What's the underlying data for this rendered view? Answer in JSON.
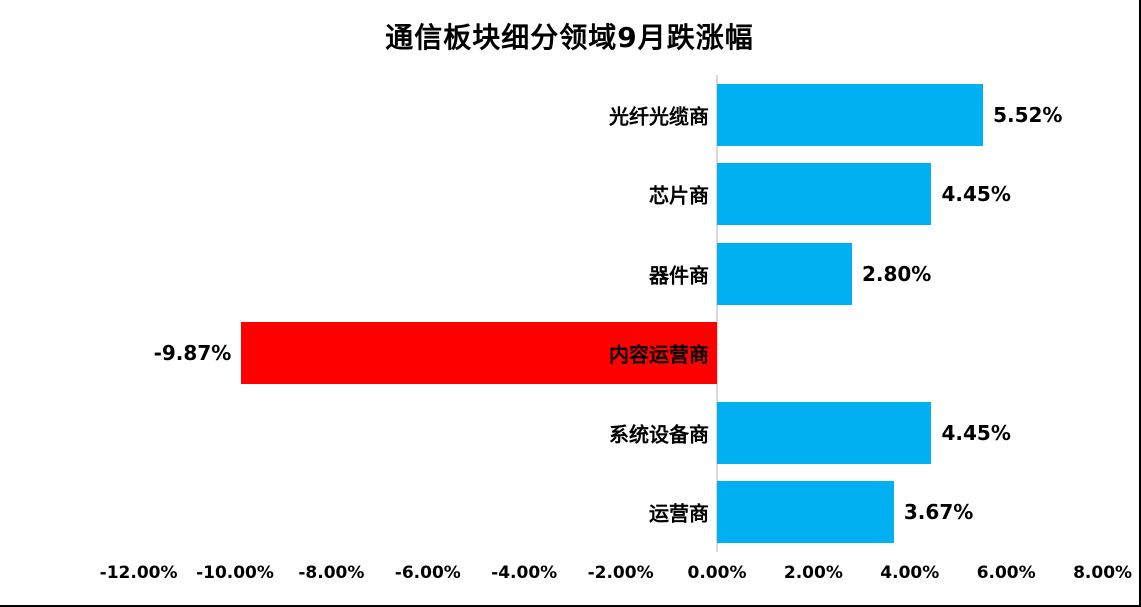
{
  "title": "通信板块细分领域9月跌涨幅",
  "colors": {
    "positive_bar": "#00b0f0",
    "negative_bar": "#ff0000",
    "axis_line": "#d9d9d9",
    "text": "#000000",
    "background": "#ffffff"
  },
  "chart_data": {
    "type": "bar",
    "orientation": "horizontal",
    "title": "通信板块细分领域9月跌涨幅",
    "categories": [
      "光纤光缆商",
      "芯片商",
      "器件商",
      "内容运营商",
      "系统设备商",
      "运营商"
    ],
    "values": [
      5.52,
      4.45,
      2.8,
      -9.87,
      4.45,
      3.67
    ],
    "data_labels": [
      "5.52%",
      "4.45%",
      "2.80%",
      "-9.87%",
      "4.45%",
      "3.67%"
    ],
    "x_ticks": [
      "-12.00%",
      "-10.00%",
      "-8.00%",
      "-6.00%",
      "-4.00%",
      "-2.00%",
      "0.00%",
      "2.00%",
      "4.00%",
      "6.00%",
      "8.00%"
    ],
    "x_tick_values": [
      -12,
      -10,
      -8,
      -6,
      -4,
      -2,
      0,
      2,
      4,
      6,
      8
    ],
    "xlim": [
      -12,
      8
    ],
    "xlabel": "",
    "ylabel": "",
    "grid": false,
    "legend": false,
    "value_unit": "percent"
  }
}
